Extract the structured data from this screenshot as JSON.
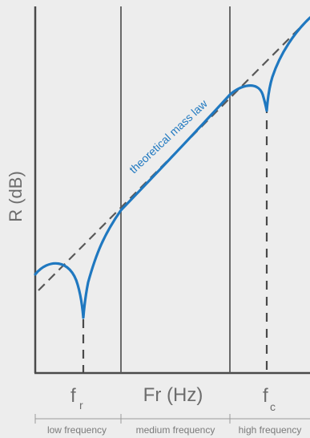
{
  "axes": {
    "y_label": "R (dB)",
    "x_label": "Fr (Hz)"
  },
  "markers": {
    "fr": {
      "main": "f",
      "sub": "r"
    },
    "fc": {
      "main": "f",
      "sub": "c"
    }
  },
  "curve_label": "theoretical mass law",
  "bands": [
    "low frequency",
    "medium frequency",
    "high frequency"
  ],
  "colors": {
    "curve": "#1f78c0",
    "mass_law": "#595959",
    "axis": "#4a4a4a",
    "divider": "#5a5a5a",
    "background": "#ededed"
  }
}
